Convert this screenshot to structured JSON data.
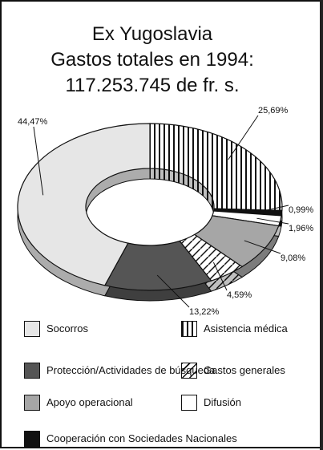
{
  "chart_data": {
    "type": "pie",
    "donut": true,
    "title": [
      "Ex Yugoslavia",
      "Gastos totales en 1994:",
      "117.253.745 de fr. s."
    ],
    "categories": [
      "Asistencia médica",
      "Cooperación con Sociedades Nacionales",
      "Difusión",
      "Apoyo operacional",
      "Gastos generales",
      "Protección/Actividades de búsqueda",
      "Socorros"
    ],
    "values": [
      25.69,
      0.99,
      1.96,
      9.08,
      4.59,
      13.22,
      44.47
    ],
    "value_labels": [
      "25,69%",
      "0,99%",
      "1,96%",
      "9,08%",
      "4,59%",
      "13,22%",
      "44,47%"
    ],
    "colors": [
      "#ffffff",
      "#111111",
      "#ffffff",
      "#a6a6a6",
      "#ffffff",
      "#555555",
      "#e6e6e6"
    ],
    "patterns": [
      "vertical",
      null,
      null,
      null,
      "diagonal",
      null,
      null
    ]
  }
}
